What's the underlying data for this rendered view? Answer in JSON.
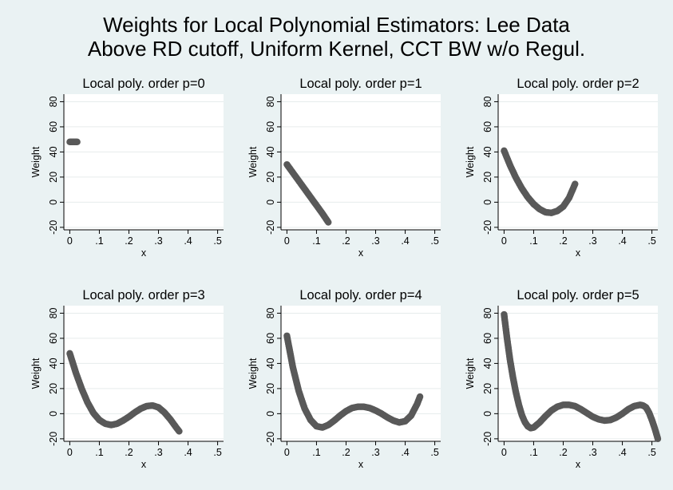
{
  "title": [
    "Weights for Local Polynomial Estimators: Lee Data",
    "Above RD cutoff, Uniform Kernel, CCT BW w/o Regul."
  ],
  "colors": {
    "background": "#eaf2f3",
    "plot_area": "#ffffff",
    "series": "#595959",
    "grid": "#e6ecec"
  },
  "chart_data": [
    {
      "type": "scatter",
      "title": "Local poly. order p=0",
      "xlabel": "x",
      "ylabel": "Weight",
      "xlim": [
        -0.02,
        0.52
      ],
      "ylim": [
        -22,
        86
      ],
      "xticks": [
        0,
        0.1,
        0.2,
        0.3,
        0.4,
        0.5
      ],
      "xtick_labels": [
        "0",
        ".1",
        ".2",
        ".3",
        ".4",
        ".5"
      ],
      "yticks": [
        -20,
        0,
        20,
        40,
        60,
        80
      ],
      "ytick_labels": [
        "-20",
        "0",
        "20",
        "40",
        "60",
        "80"
      ],
      "grid": true,
      "series": [
        {
          "x": [
            0,
            0.005,
            0.01,
            0.015,
            0.02,
            0.025
          ],
          "y": [
            48,
            48,
            48,
            48,
            48,
            48
          ]
        }
      ]
    },
    {
      "type": "scatter",
      "title": "Local poly. order p=1",
      "xlabel": "x",
      "ylabel": "Weight",
      "xlim": [
        -0.02,
        0.52
      ],
      "ylim": [
        -22,
        86
      ],
      "xticks": [
        0,
        0.1,
        0.2,
        0.3,
        0.4,
        0.5
      ],
      "xtick_labels": [
        "0",
        ".1",
        ".2",
        ".3",
        ".4",
        ".5"
      ],
      "yticks": [
        -20,
        0,
        20,
        40,
        60,
        80
      ],
      "ytick_labels": [
        "-20",
        "0",
        "20",
        "40",
        "60",
        "80"
      ],
      "grid": true,
      "series": [
        {
          "x": [
            0,
            0.02,
            0.04,
            0.06,
            0.08,
            0.1,
            0.12,
            0.14
          ],
          "y": [
            30,
            23.5,
            17,
            10.5,
            4,
            -2.5,
            -9,
            -16
          ]
        }
      ]
    },
    {
      "type": "scatter",
      "title": "Local poly. order p=2",
      "xlabel": "x",
      "ylabel": "Weight",
      "xlim": [
        -0.02,
        0.52
      ],
      "ylim": [
        -22,
        86
      ],
      "xticks": [
        0,
        0.1,
        0.2,
        0.3,
        0.4,
        0.5
      ],
      "xtick_labels": [
        "0",
        ".1",
        ".2",
        ".3",
        ".4",
        ".5"
      ],
      "yticks": [
        -20,
        0,
        20,
        40,
        60,
        80
      ],
      "ytick_labels": [
        "-20",
        "0",
        "20",
        "40",
        "60",
        "80"
      ],
      "grid": true,
      "series": [
        {
          "x": [
            0,
            0.02,
            0.04,
            0.06,
            0.08,
            0.1,
            0.12,
            0.14,
            0.16,
            0.18,
            0.2,
            0.22,
            0.24
          ],
          "y": [
            41,
            29.5,
            19.5,
            11,
            4,
            -1.5,
            -5.5,
            -8,
            -8.5,
            -7,
            -3.5,
            3.5,
            14.5
          ]
        }
      ]
    },
    {
      "type": "scatter",
      "title": "Local poly. order p=3",
      "xlabel": "x",
      "ylabel": "Weight",
      "xlim": [
        -0.02,
        0.52
      ],
      "ylim": [
        -22,
        86
      ],
      "xticks": [
        0,
        0.1,
        0.2,
        0.3,
        0.4,
        0.5
      ],
      "xtick_labels": [
        "0",
        ".1",
        ".2",
        ".3",
        ".4",
        ".5"
      ],
      "yticks": [
        -20,
        0,
        20,
        40,
        60,
        80
      ],
      "ytick_labels": [
        "-20",
        "0",
        "20",
        "40",
        "60",
        "80"
      ],
      "grid": true,
      "series": [
        {
          "x": [
            0,
            0.02,
            0.04,
            0.06,
            0.08,
            0.1,
            0.12,
            0.14,
            0.16,
            0.18,
            0.2,
            0.22,
            0.24,
            0.26,
            0.28,
            0.3,
            0.32,
            0.34,
            0.36,
            0.37
          ],
          "y": [
            48,
            33,
            20,
            9,
            0.5,
            -5,
            -8,
            -9,
            -8,
            -5.5,
            -2.5,
            1,
            4,
            6,
            6.5,
            5,
            1,
            -4.5,
            -11,
            -14
          ]
        }
      ]
    },
    {
      "type": "scatter",
      "title": "Local poly. order p=4",
      "xlabel": "x",
      "ylabel": "Weight",
      "xlim": [
        -0.02,
        0.52
      ],
      "ylim": [
        -22,
        86
      ],
      "xticks": [
        0,
        0.1,
        0.2,
        0.3,
        0.4,
        0.5
      ],
      "xtick_labels": [
        "0",
        ".1",
        ".2",
        ".3",
        ".4",
        ".5"
      ],
      "yticks": [
        -20,
        0,
        20,
        40,
        60,
        80
      ],
      "ytick_labels": [
        "-20",
        "0",
        "20",
        "40",
        "60",
        "80"
      ],
      "grid": true,
      "series": [
        {
          "x": [
            0,
            0.02,
            0.04,
            0.06,
            0.08,
            0.1,
            0.12,
            0.14,
            0.16,
            0.18,
            0.2,
            0.22,
            0.24,
            0.26,
            0.28,
            0.3,
            0.32,
            0.34,
            0.36,
            0.38,
            0.4,
            0.42,
            0.44,
            0.45
          ],
          "y": [
            62,
            37,
            18,
            4,
            -5,
            -10,
            -11,
            -9,
            -5.5,
            -1.5,
            2,
            4.5,
            5.5,
            5.5,
            4.5,
            2.5,
            0,
            -3,
            -5.5,
            -7,
            -6,
            -1.5,
            7.5,
            13.5
          ]
        }
      ]
    },
    {
      "type": "scatter",
      "title": "Local poly. order p=5",
      "xlabel": "x",
      "ylabel": "Weight",
      "xlim": [
        -0.02,
        0.52
      ],
      "ylim": [
        -22,
        86
      ],
      "xticks": [
        0,
        0.1,
        0.2,
        0.3,
        0.4,
        0.5
      ],
      "xtick_labels": [
        "0",
        ".1",
        ".2",
        ".3",
        ".4",
        ".5"
      ],
      "yticks": [
        -20,
        0,
        20,
        40,
        60,
        80
      ],
      "ytick_labels": [
        "-20",
        "0",
        "20",
        "40",
        "60",
        "80"
      ],
      "grid": true,
      "series": [
        {
          "x": [
            0,
            0.01,
            0.02,
            0.03,
            0.04,
            0.05,
            0.06,
            0.07,
            0.08,
            0.09,
            0.1,
            0.12,
            0.14,
            0.16,
            0.18,
            0.2,
            0.22,
            0.24,
            0.26,
            0.28,
            0.3,
            0.32,
            0.34,
            0.36,
            0.38,
            0.4,
            0.42,
            0.44,
            0.46,
            0.47,
            0.48,
            0.49,
            0.5,
            0.51,
            0.52
          ],
          "y": [
            79,
            60,
            43,
            29,
            17,
            7,
            -1,
            -6.5,
            -10,
            -11.5,
            -11,
            -7,
            -2,
            2.5,
            5.5,
            7,
            7,
            6,
            3.5,
            0.5,
            -2.5,
            -4.5,
            -5.5,
            -5,
            -3,
            0,
            3.5,
            6,
            7,
            6.5,
            5,
            1,
            -5,
            -12,
            -20
          ]
        }
      ]
    }
  ]
}
